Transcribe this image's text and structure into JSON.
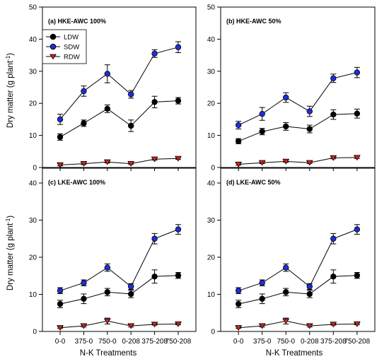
{
  "figure": {
    "xlabel": "N-K Treatments",
    "ylabel_main": "Dry matter (g plant",
    "ylabel_sup": "-1",
    "ylabel_close": ")"
  },
  "legend": {
    "placement": "top-left of panel (a)",
    "entries": [
      {
        "name": "LDW",
        "marker": "circle",
        "color": "#000000"
      },
      {
        "name": "SDW",
        "marker": "circle",
        "color": "#1f2ed6"
      },
      {
        "name": "RDW",
        "marker": "triangle-down",
        "color": "#d42020"
      }
    ]
  },
  "chart_data": [
    {
      "type": "line",
      "title": "(a) HKE-AWC 100%",
      "categories": [
        "0-0",
        "375-0",
        "750-0",
        "0-208",
        "375-208",
        "750-208"
      ],
      "ylim": [
        0,
        50
      ],
      "yticks": [
        0,
        10,
        20,
        30,
        40,
        50
      ],
      "show_xticklabels": false,
      "series": [
        {
          "name": "LDW",
          "values": [
            9.5,
            13.8,
            18.3,
            13.0,
            20.4,
            20.8
          ],
          "errors": [
            1.0,
            1.0,
            1.2,
            1.8,
            1.8,
            1.0
          ]
        },
        {
          "name": "SDW",
          "values": [
            15.0,
            23.8,
            29.2,
            22.8,
            35.5,
            37.5
          ],
          "errors": [
            1.6,
            1.6,
            2.8,
            1.2,
            1.2,
            1.7
          ]
        },
        {
          "name": "RDW",
          "values": [
            0.8,
            1.2,
            1.7,
            1.2,
            2.6,
            2.8
          ],
          "errors": [
            0.3,
            0.3,
            0.3,
            0.3,
            0.3,
            0.3
          ]
        }
      ]
    },
    {
      "type": "line",
      "title": "(b) HKE-AWC 50%",
      "categories": [
        "0-0",
        "375-0",
        "750-0",
        "0-208",
        "375-208",
        "750-208"
      ],
      "ylim": [
        0,
        50
      ],
      "yticks": [
        0,
        10,
        20,
        30,
        40,
        50
      ],
      "show_xticklabels": false,
      "series": [
        {
          "name": "LDW",
          "values": [
            8.2,
            11.2,
            12.8,
            12.0,
            16.5,
            16.8
          ],
          "errors": [
            0.8,
            1.0,
            1.2,
            1.2,
            1.5,
            1.4
          ]
        },
        {
          "name": "SDW",
          "values": [
            13.2,
            16.7,
            21.8,
            17.5,
            27.8,
            29.6
          ],
          "errors": [
            1.2,
            2.0,
            1.5,
            1.6,
            1.3,
            1.6
          ]
        },
        {
          "name": "RDW",
          "values": [
            1.0,
            1.5,
            1.9,
            1.5,
            3.0,
            3.1
          ],
          "errors": [
            0.3,
            0.3,
            0.3,
            0.3,
            0.3,
            0.3
          ]
        }
      ]
    },
    {
      "type": "line",
      "title": "(c) LKE-AWC 100%",
      "categories": [
        "0-0",
        "375-0",
        "750-0",
        "0-208",
        "375-208",
        "750-208"
      ],
      "ylim": [
        0,
        44
      ],
      "yticks": [
        0,
        10,
        20,
        30,
        40
      ],
      "show_xticklabels": true,
      "series": [
        {
          "name": "LDW",
          "values": [
            7.4,
            8.8,
            10.6,
            10.1,
            14.8,
            15.1
          ],
          "errors": [
            1.0,
            1.3,
            1.0,
            1.0,
            1.8,
            0.8
          ]
        },
        {
          "name": "SDW",
          "values": [
            11.0,
            13.1,
            17.2,
            12.1,
            25.0,
            27.5
          ],
          "errors": [
            0.8,
            0.8,
            1.0,
            0.8,
            1.4,
            1.3
          ]
        },
        {
          "name": "RDW",
          "values": [
            1.0,
            1.5,
            2.8,
            1.5,
            1.9,
            2.0
          ],
          "errors": [
            0.2,
            0.3,
            0.8,
            0.3,
            0.2,
            0.2
          ]
        }
      ]
    },
    {
      "type": "line",
      "title": "(d) LKE-AWC 50%",
      "categories": [
        "0-0",
        "375-0",
        "750-0",
        "0-208",
        "375-208",
        "750-208"
      ],
      "ylim": [
        0,
        44
      ],
      "yticks": [
        0,
        10,
        20,
        30,
        40
      ],
      "show_xticklabels": true,
      "series": [
        {
          "name": "LDW",
          "values": [
            7.4,
            8.8,
            10.6,
            10.1,
            14.8,
            15.1
          ],
          "errors": [
            1.0,
            1.3,
            1.0,
            1.0,
            1.8,
            0.8
          ]
        },
        {
          "name": "SDW",
          "values": [
            11.0,
            13.1,
            17.2,
            12.1,
            25.0,
            27.5
          ],
          "errors": [
            0.8,
            0.8,
            1.0,
            0.8,
            1.4,
            1.3
          ]
        },
        {
          "name": "RDW",
          "values": [
            1.0,
            1.5,
            2.8,
            1.5,
            1.9,
            2.0
          ],
          "errors": [
            0.2,
            0.3,
            0.8,
            0.3,
            0.2,
            0.2
          ]
        }
      ]
    }
  ]
}
